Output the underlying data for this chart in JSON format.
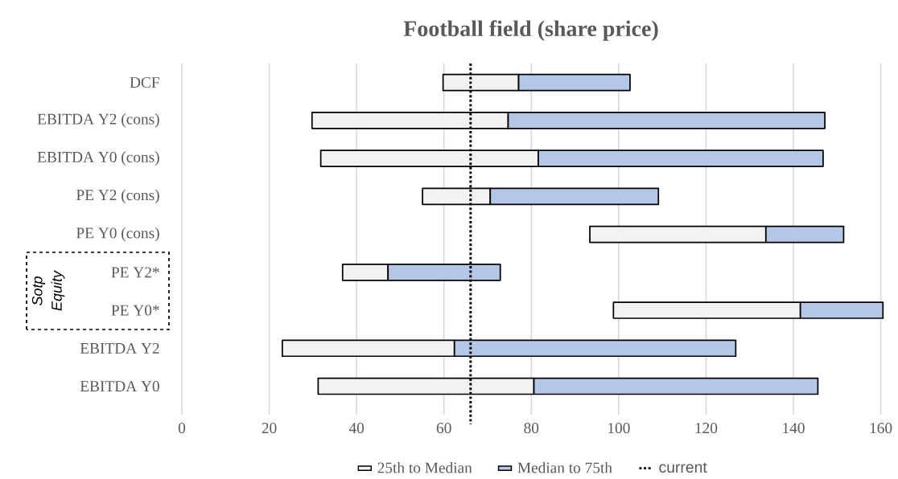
{
  "chart_data": {
    "type": "bar",
    "orientation": "horizontal",
    "title": "Football field (share price)",
    "categories": [
      "DCF",
      "EBITDA Y2 (cons)",
      "EBITDA Y0 (cons)",
      "PE Y2 (cons)",
      "PE Y0 (cons)",
      "PE Y2*",
      "PE Y0*",
      "EBITDA Y2",
      "EBITDA Y0"
    ],
    "series": [
      {
        "name": "25th to Median",
        "color": "#f2f2f2",
        "base": [
          59.8,
          29.8,
          31.8,
          55.1,
          93.4,
          36.8,
          98.8,
          23.0,
          31.2
        ],
        "values": [
          17.3,
          44.9,
          49.8,
          15.5,
          40.3,
          10.4,
          42.8,
          39.4,
          49.4
        ]
      },
      {
        "name": "Median to 75th",
        "color": "#b4c7e7",
        "base": [
          77.1,
          74.7,
          81.6,
          70.6,
          133.7,
          47.2,
          141.6,
          62.4,
          80.6
        ],
        "values": [
          25.5,
          72.5,
          65.2,
          38.5,
          17.8,
          25.7,
          18.9,
          64.4,
          65.0
        ]
      }
    ],
    "xlim": [
      0,
      161
    ],
    "xticks": [
      0,
      20,
      40,
      60,
      80,
      100,
      120,
      140,
      160
    ],
    "grid": "x",
    "legend": "bottom",
    "ref_lines": [
      {
        "axis": "x",
        "value": 66.1,
        "label": "current",
        "color": "#000000",
        "line_style": "dotted"
      }
    ],
    "annotations": [
      "Sotp",
      "Equity"
    ]
  }
}
